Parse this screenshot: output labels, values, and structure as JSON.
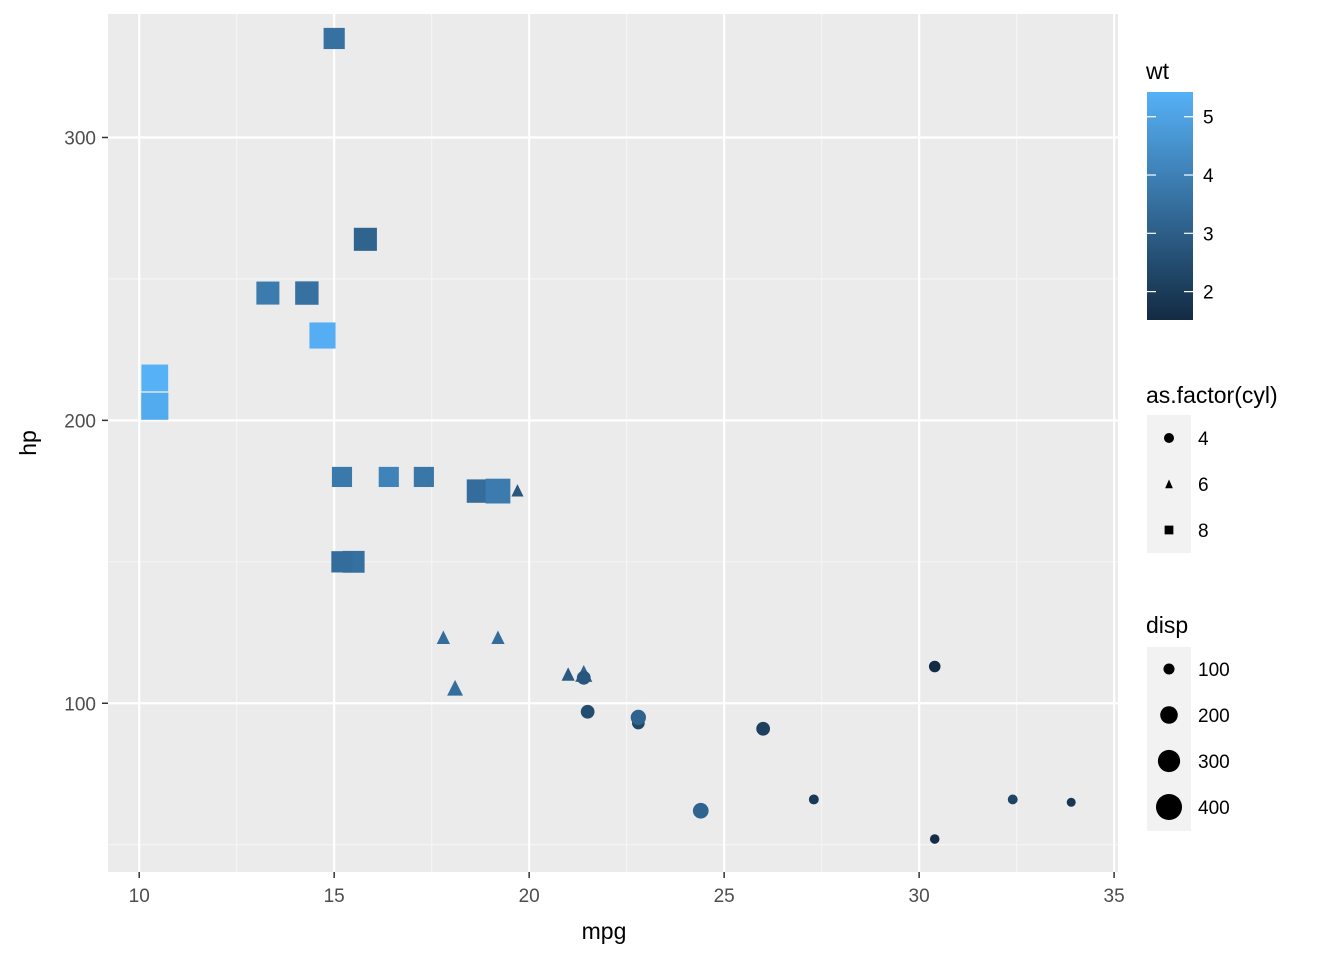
{
  "chart_data": {
    "type": "scatter",
    "xlabel": "mpg",
    "ylabel": "hp",
    "xlim": [
      9.2,
      35.1
    ],
    "ylim": [
      40.35,
      343.65
    ],
    "x_ticks": [
      10,
      15,
      20,
      25,
      30,
      35
    ],
    "y_ticks": [
      100,
      200,
      300
    ],
    "x_tick_labels": [
      "10",
      "15",
      "20",
      "25",
      "30",
      "35"
    ],
    "y_tick_labels": [
      "100",
      "200",
      "300"
    ],
    "grid": true,
    "background": "#e5e5e5",
    "points": [
      {
        "mpg": 21.0,
        "hp": 110,
        "cyl": 6,
        "disp": 160,
        "wt": 2.62
      },
      {
        "mpg": 21.0,
        "hp": 110,
        "cyl": 6,
        "disp": 160,
        "wt": 2.875
      },
      {
        "mpg": 22.8,
        "hp": 93,
        "cyl": 4,
        "disp": 108,
        "wt": 2.32
      },
      {
        "mpg": 21.4,
        "hp": 110,
        "cyl": 6,
        "disp": 258,
        "wt": 3.215
      },
      {
        "mpg": 18.7,
        "hp": 175,
        "cyl": 8,
        "disp": 360,
        "wt": 3.44
      },
      {
        "mpg": 18.1,
        "hp": 105,
        "cyl": 6,
        "disp": 225,
        "wt": 3.46
      },
      {
        "mpg": 14.3,
        "hp": 245,
        "cyl": 8,
        "disp": 360,
        "wt": 3.57
      },
      {
        "mpg": 24.4,
        "hp": 62,
        "cyl": 4,
        "disp": 146.7,
        "wt": 3.19
      },
      {
        "mpg": 22.8,
        "hp": 95,
        "cyl": 4,
        "disp": 140.8,
        "wt": 3.15
      },
      {
        "mpg": 19.2,
        "hp": 123,
        "cyl": 6,
        "disp": 167.6,
        "wt": 3.44
      },
      {
        "mpg": 17.8,
        "hp": 123,
        "cyl": 6,
        "disp": 167.6,
        "wt": 3.44
      },
      {
        "mpg": 16.4,
        "hp": 180,
        "cyl": 8,
        "disp": 275.8,
        "wt": 4.07
      },
      {
        "mpg": 17.3,
        "hp": 180,
        "cyl": 8,
        "disp": 275.8,
        "wt": 3.73
      },
      {
        "mpg": 15.2,
        "hp": 180,
        "cyl": 8,
        "disp": 275.8,
        "wt": 3.78
      },
      {
        "mpg": 10.4,
        "hp": 205,
        "cyl": 8,
        "disp": 472,
        "wt": 5.25
      },
      {
        "mpg": 10.4,
        "hp": 215,
        "cyl": 8,
        "disp": 460,
        "wt": 5.424
      },
      {
        "mpg": 14.7,
        "hp": 230,
        "cyl": 8,
        "disp": 440,
        "wt": 5.345
      },
      {
        "mpg": 32.4,
        "hp": 66,
        "cyl": 4,
        "disp": 78.7,
        "wt": 2.2
      },
      {
        "mpg": 30.4,
        "hp": 52,
        "cyl": 4,
        "disp": 75.7,
        "wt": 1.615
      },
      {
        "mpg": 33.9,
        "hp": 65,
        "cyl": 4,
        "disp": 71.1,
        "wt": 1.835
      },
      {
        "mpg": 21.5,
        "hp": 97,
        "cyl": 4,
        "disp": 120.1,
        "wt": 2.465
      },
      {
        "mpg": 15.5,
        "hp": 150,
        "cyl": 8,
        "disp": 318,
        "wt": 3.52
      },
      {
        "mpg": 15.2,
        "hp": 150,
        "cyl": 8,
        "disp": 304,
        "wt": 3.435
      },
      {
        "mpg": 13.3,
        "hp": 245,
        "cyl": 8,
        "disp": 350,
        "wt": 3.84
      },
      {
        "mpg": 19.2,
        "hp": 175,
        "cyl": 8,
        "disp": 400,
        "wt": 3.845
      },
      {
        "mpg": 27.3,
        "hp": 66,
        "cyl": 4,
        "disp": 79,
        "wt": 1.935
      },
      {
        "mpg": 26.0,
        "hp": 91,
        "cyl": 4,
        "disp": 120.3,
        "wt": 2.14
      },
      {
        "mpg": 30.4,
        "hp": 113,
        "cyl": 4,
        "disp": 95.1,
        "wt": 1.513
      },
      {
        "mpg": 15.8,
        "hp": 264,
        "cyl": 8,
        "disp": 351,
        "wt": 3.17
      },
      {
        "mpg": 19.7,
        "hp": 175,
        "cyl": 6,
        "disp": 145,
        "wt": 2.77
      },
      {
        "mpg": 15.0,
        "hp": 335,
        "cyl": 8,
        "disp": 301,
        "wt": 3.57
      },
      {
        "mpg": 21.4,
        "hp": 109,
        "cyl": 4,
        "disp": 121,
        "wt": 2.78
      }
    ],
    "color_scale": {
      "low": "#132b43",
      "high": "#56b1f7",
      "range": [
        1.513,
        5.424
      ]
    },
    "size_scale": {
      "range": [
        71.1,
        472
      ]
    },
    "legends": {
      "wt": {
        "title": "wt",
        "labels": [
          "5",
          "4",
          "3",
          "2"
        ],
        "values": [
          5,
          4,
          3,
          2
        ]
      },
      "cyl": {
        "title": "as.factor(cyl)",
        "labels": [
          "4",
          "6",
          "8"
        ],
        "shapes": [
          "circle",
          "triangle",
          "square"
        ]
      },
      "disp": {
        "title": "disp",
        "labels": [
          "100",
          "200",
          "300",
          "400"
        ],
        "values": [
          100,
          200,
          300,
          400
        ]
      }
    }
  }
}
